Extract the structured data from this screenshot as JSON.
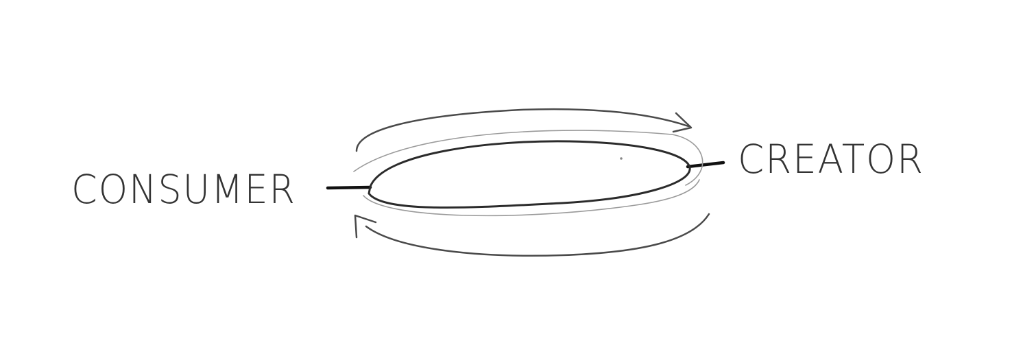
{
  "nodes": {
    "left": {
      "label": "CONSUMER"
    },
    "right": {
      "label": "CREATOR"
    }
  },
  "colors": {
    "background": "#ffffff",
    "ink": "#2b2b2b"
  }
}
